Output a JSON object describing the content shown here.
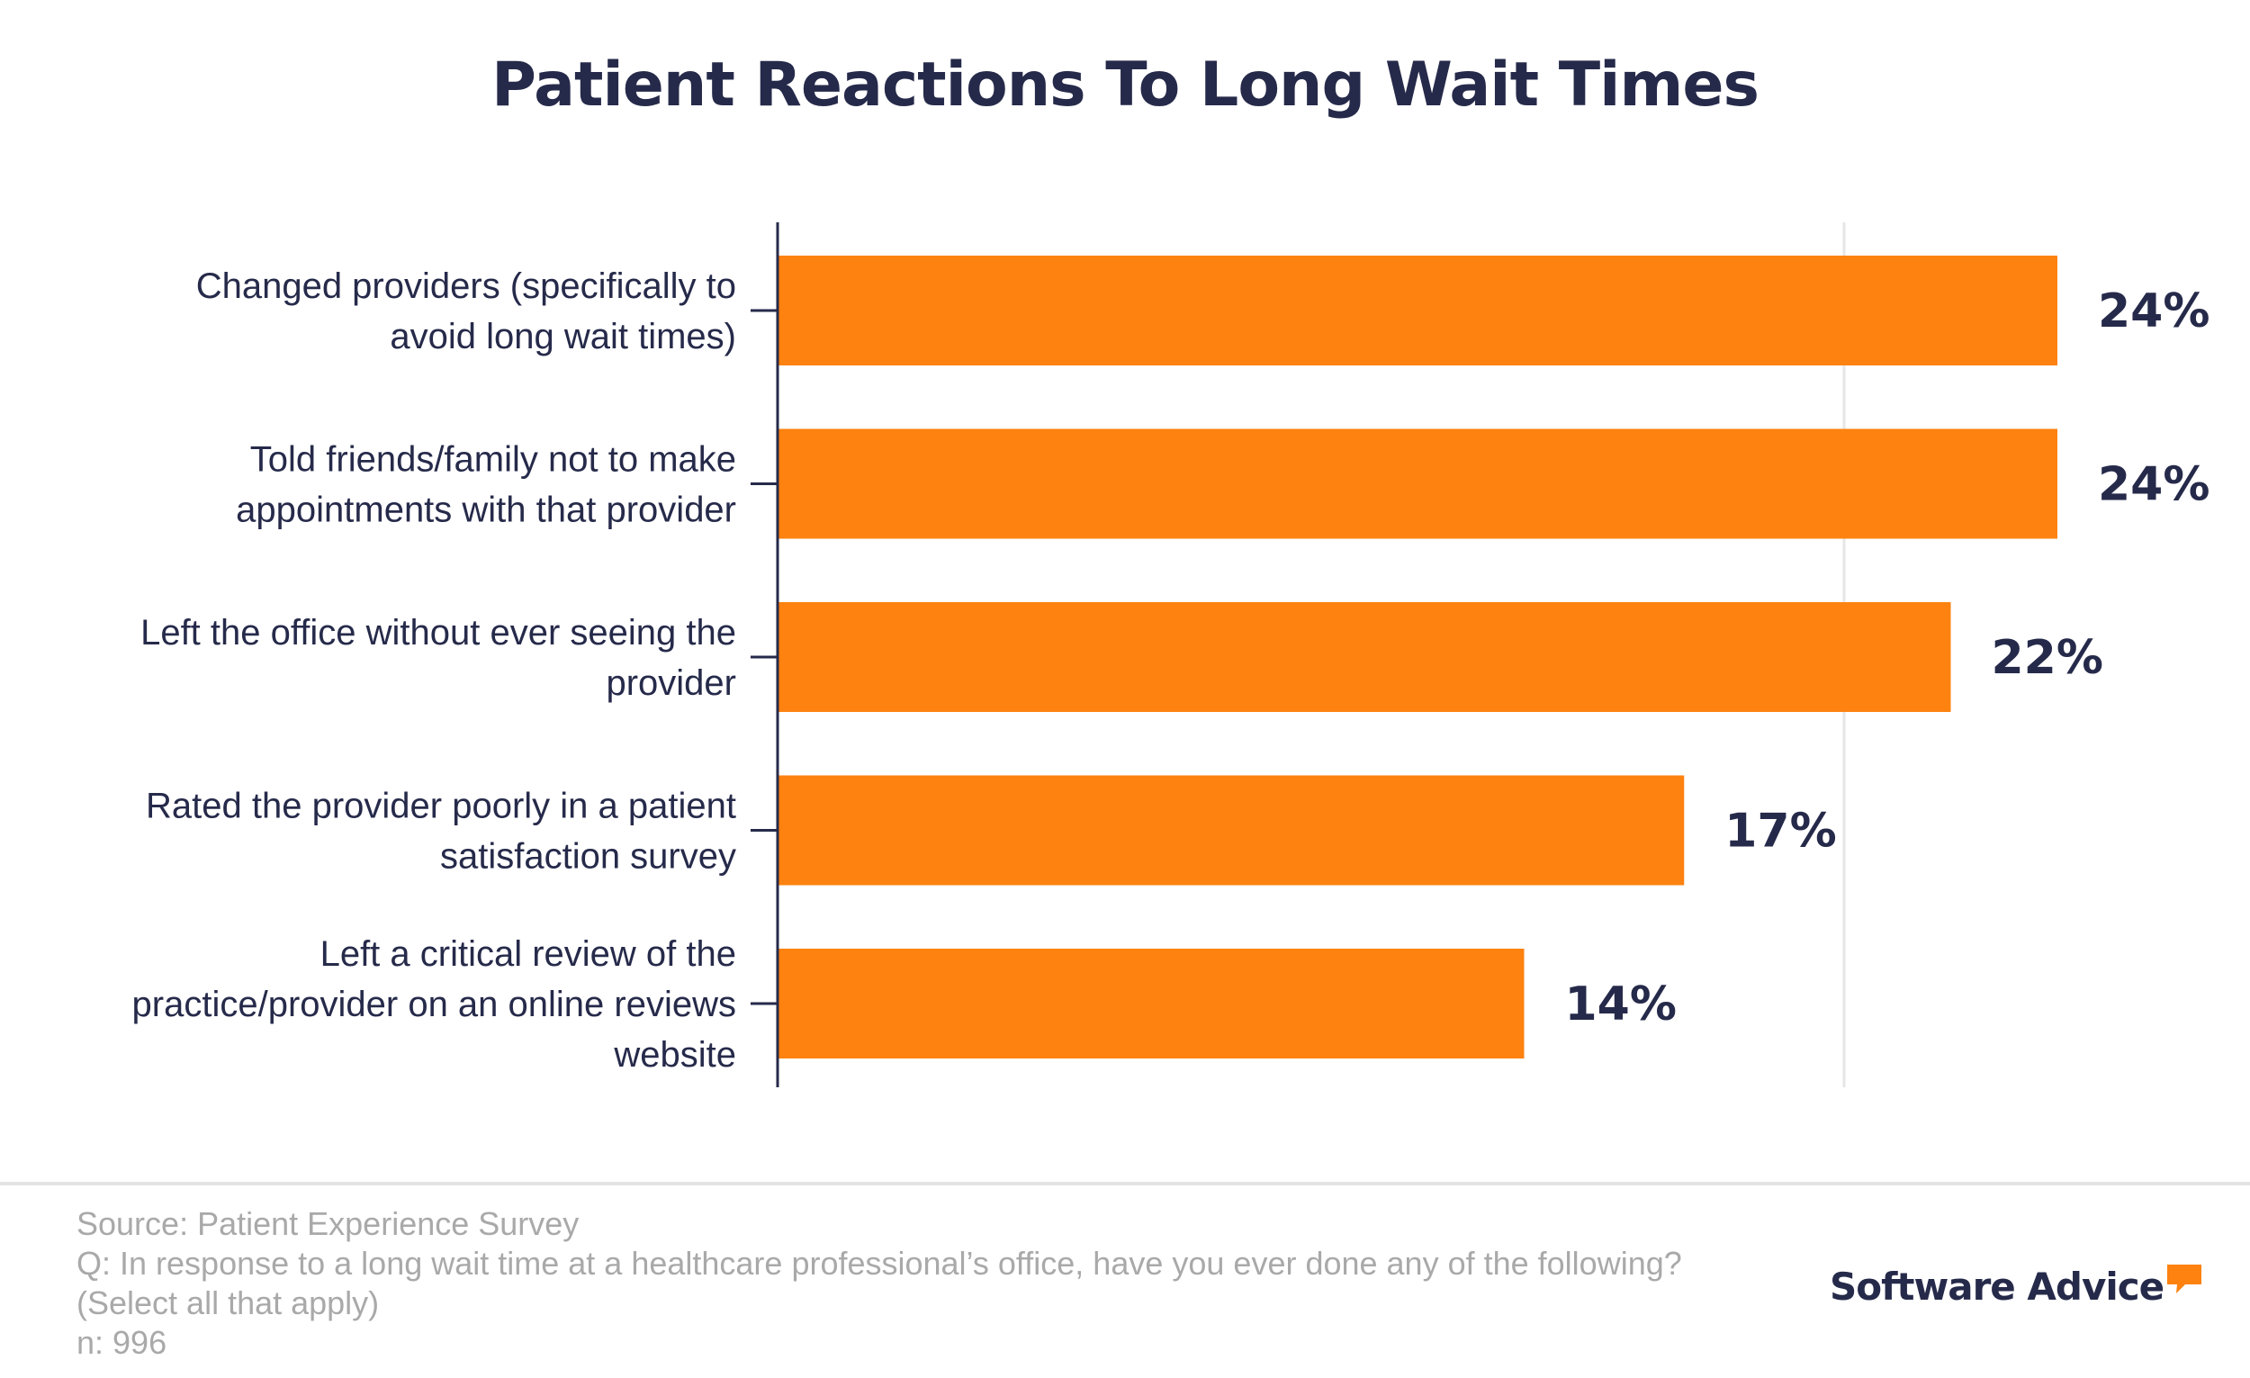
{
  "title": "Patient Reactions To Long Wait Times",
  "colors": {
    "bar": "#fd8210",
    "text": "#262a4a",
    "grid": "#e6e6e6",
    "footer": "#a9a9a9",
    "logo_accent": "#fd8210"
  },
  "chart_data": {
    "type": "bar",
    "orientation": "horizontal",
    "title": "Patient Reactions To Long Wait Times",
    "categories": [
      [
        "Changed providers (specifically to",
        "avoid long wait times)"
      ],
      [
        "Told friends/family not to make",
        "appointments with that provider"
      ],
      [
        "Left the office without ever seeing the",
        "provider"
      ],
      [
        "Rated the provider poorly in a patient",
        "satisfaction survey"
      ],
      [
        "Left a critical review of the",
        "practice/provider on an online reviews",
        "website"
      ]
    ],
    "values": [
      24,
      24,
      22,
      17,
      14
    ],
    "value_labels": [
      "24%",
      "24%",
      "22%",
      "17%",
      "14%"
    ],
    "xlim": [
      0,
      20
    ],
    "grid": true,
    "legend": "none"
  },
  "footer": {
    "lines": [
      "Source: Patient Experience Survey",
      "Q: In response to a long wait time at a healthcare professional’s office, have you ever done any of the following?",
      "(Select all that apply)",
      "n: 996"
    ]
  },
  "logo": {
    "text": "Software Advice",
    "icon": "speech-bubble-icon"
  }
}
